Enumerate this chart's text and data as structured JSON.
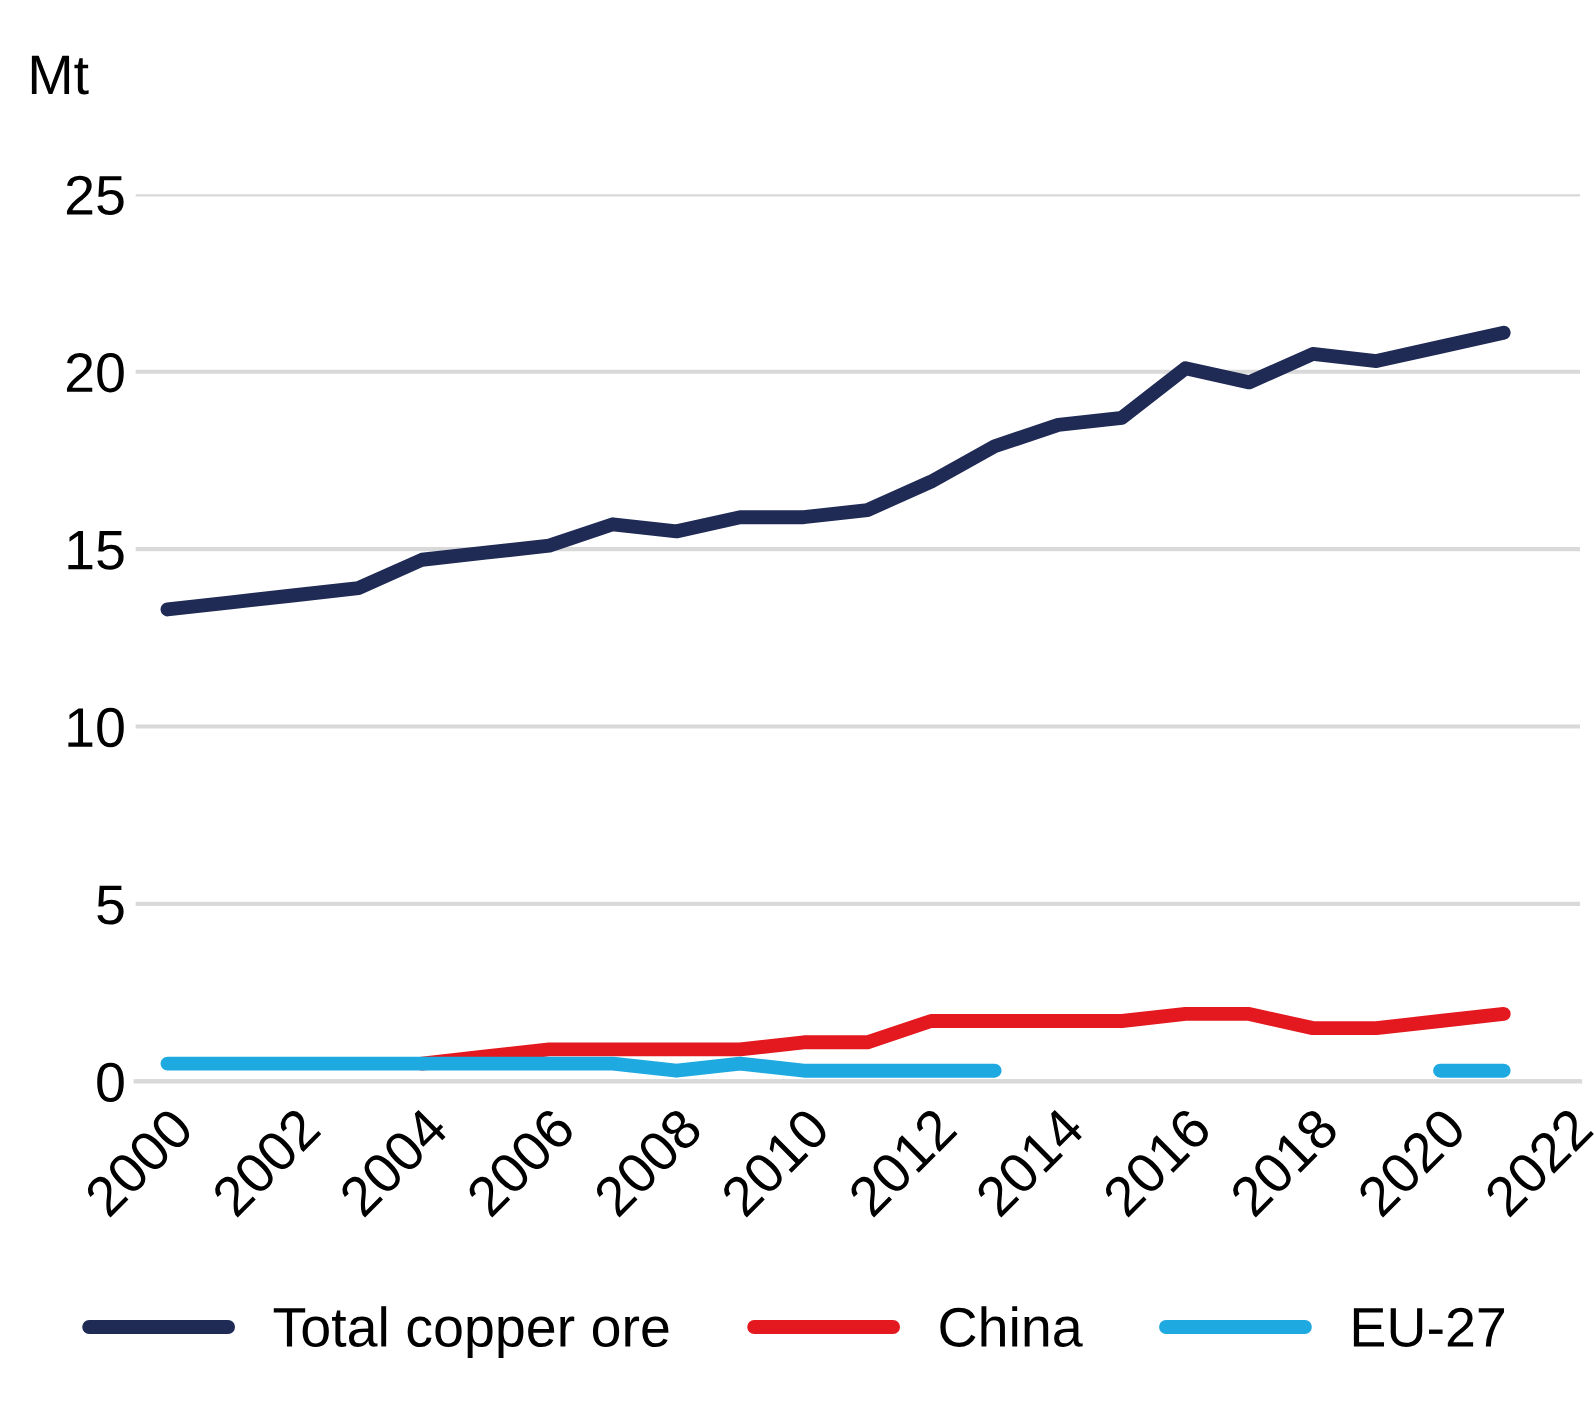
{
  "chart_data": {
    "type": "line",
    "ylabel": "Mt",
    "x": [
      2000,
      2001,
      2002,
      2003,
      2004,
      2005,
      2006,
      2007,
      2008,
      2009,
      2010,
      2011,
      2012,
      2013,
      2014,
      2015,
      2016,
      2017,
      2018,
      2019,
      2020,
      2021
    ],
    "xlim": [
      1999.5,
      2022.2
    ],
    "xticks": [
      2000,
      2002,
      2004,
      2006,
      2008,
      2010,
      2012,
      2014,
      2016,
      2018,
      2020,
      2022
    ],
    "ylim": [
      0,
      25
    ],
    "yticks": [
      0,
      5,
      10,
      15,
      20,
      25
    ],
    "grid": "y",
    "legend": "bottom",
    "marker": "none",
    "line_style": "solid",
    "series": [
      {
        "name": "Total copper ore",
        "color": "#1f2a55",
        "values": [
          13.3,
          13.5,
          13.7,
          13.9,
          14.7,
          14.9,
          15.1,
          15.7,
          15.5,
          15.9,
          15.9,
          16.1,
          16.9,
          17.9,
          18.5,
          18.7,
          20.1,
          19.7,
          20.5,
          20.3,
          20.7,
          21.1
        ]
      },
      {
        "name": "China",
        "color": "#e3191f",
        "values": [
          null,
          null,
          null,
          null,
          0.5,
          0.7,
          0.9,
          0.9,
          0.9,
          0.9,
          1.1,
          1.1,
          1.7,
          1.7,
          1.7,
          1.7,
          1.9,
          1.9,
          1.5,
          1.5,
          1.7,
          1.9
        ]
      },
      {
        "name": "EU-27",
        "color": "#1ea9e1",
        "values": [
          0.5,
          0.5,
          0.5,
          0.5,
          0.5,
          0.5,
          0.5,
          0.5,
          0.3,
          0.5,
          0.3,
          0.3,
          0.3,
          0.3,
          null,
          null,
          null,
          null,
          null,
          null,
          0.3,
          0.3
        ]
      }
    ]
  }
}
